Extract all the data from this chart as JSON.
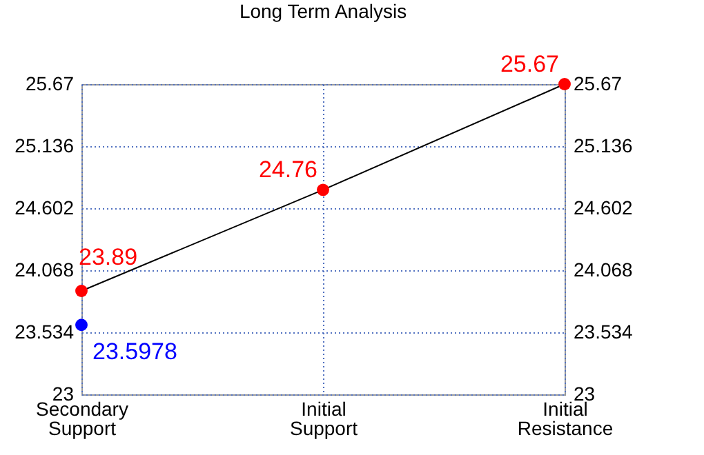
{
  "chart_data": {
    "type": "scatter",
    "title": "Long Term Analysis",
    "categories": [
      "Secondary Support",
      "Initial Support",
      "Initial Resistance"
    ],
    "ylim": [
      23,
      25.67
    ],
    "yticks": [
      23,
      23.534,
      24.068,
      24.602,
      25.136,
      25.67
    ],
    "y2lim": [
      23,
      25.67
    ],
    "y2ticks": [
      23,
      23.534,
      24.068,
      24.602,
      25.136,
      25.67
    ],
    "series": [
      {
        "type": "line",
        "color": "#000000",
        "values": [
          23.89,
          24.76,
          25.67
        ]
      },
      {
        "type": "scatter",
        "color": "#ff0000",
        "values": [
          23.89,
          24.76,
          25.67
        ],
        "value_labels": [
          "23.89",
          "24.76",
          "25.67"
        ]
      },
      {
        "color": "#0000ff",
        "x": [
          "Secondary Support"
        ],
        "values": [
          23.5978
        ],
        "value_labels": [
          "23.5978"
        ]
      }
    ],
    "grid": true
  }
}
